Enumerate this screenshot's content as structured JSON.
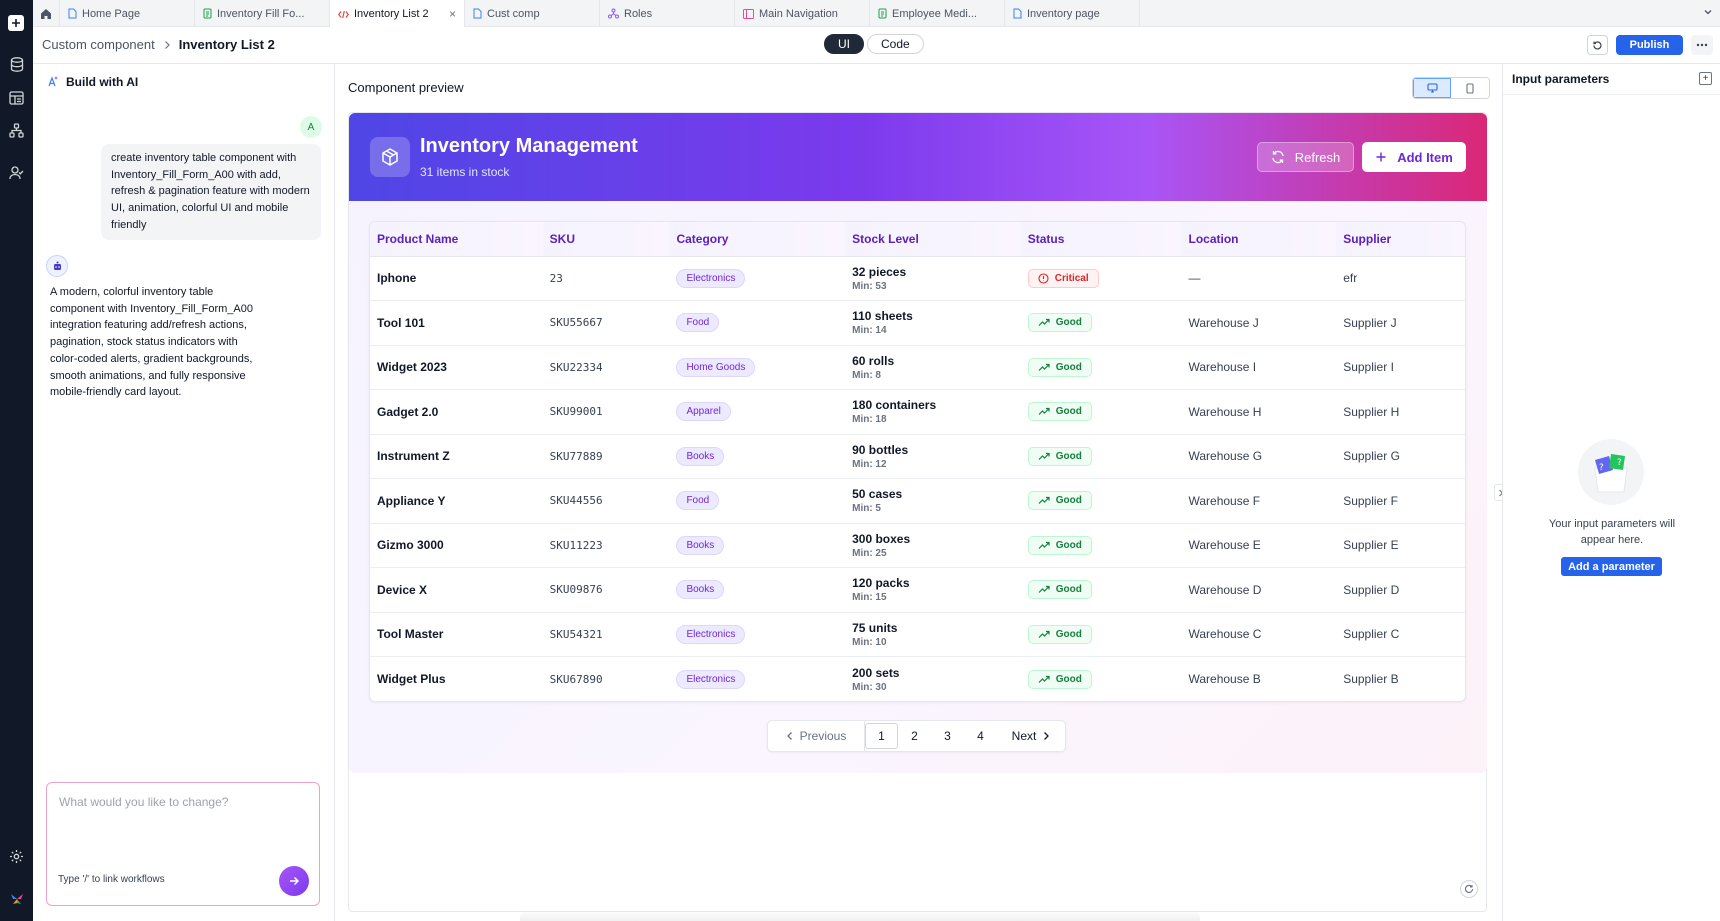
{
  "rail": {
    "icons": [
      "plus-icon",
      "database-icon",
      "table-icon",
      "workflow-icon",
      "users-icon",
      "settings-icon",
      "logo-icon"
    ]
  },
  "tabs": [
    {
      "label": "Home Page",
      "icon": "page-icon",
      "active": false
    },
    {
      "label": "Inventory Fill Fo...",
      "icon": "form-icon",
      "active": false
    },
    {
      "label": "Inventory List 2",
      "icon": "code-icon",
      "active": true
    },
    {
      "label": "Cust comp",
      "icon": "page-icon",
      "active": false
    },
    {
      "label": "Roles",
      "icon": "roles-icon",
      "active": false
    },
    {
      "label": "Main Navigation",
      "icon": "nav-icon",
      "active": false
    },
    {
      "label": "Employee Medi...",
      "icon": "form-icon",
      "active": false
    },
    {
      "label": "Inventory page",
      "icon": "page-icon",
      "active": false
    }
  ],
  "header": {
    "breadcrumb_parent": "Custom component",
    "breadcrumb_current": "Inventory List 2",
    "mode_ui": "UI",
    "mode_code": "Code",
    "publish_label": "Publish"
  },
  "ai_panel": {
    "title": "Build with AI",
    "user_avatar": "A",
    "user_message": "create inventory table component with Inventory_Fill_Form_A00 with add, refresh & pagination feature with modern UI, animation, colorful UI and mobile friendly",
    "bot_message": "A modern, colorful inventory table component with Inventory_Fill_Form_A00 integration featuring add/refresh actions, pagination, stock status indicators with color-coded alerts, gradient backgrounds, smooth animations, and fully responsive mobile-friendly card layout.",
    "input_placeholder": "What would you like to change?",
    "input_hint": "Type '/' to link workflows"
  },
  "preview": {
    "title": "Component preview",
    "hero_title": "Inventory Management",
    "hero_subtitle": "31 items in stock",
    "refresh_label": "Refresh",
    "add_label": "Add Item",
    "columns": [
      "Product Name",
      "SKU",
      "Category",
      "Stock Level",
      "Status",
      "Location",
      "Supplier"
    ],
    "rows": [
      {
        "name": "Iphone",
        "sku": "23",
        "category": "Electronics",
        "stock": "32 pieces",
        "min": "Min: 53",
        "status": "Critical",
        "location": "—",
        "supplier": "efr"
      },
      {
        "name": "Tool 101",
        "sku": "SKU55667",
        "category": "Food",
        "stock": "110 sheets",
        "min": "Min: 14",
        "status": "Good",
        "location": "Warehouse J",
        "supplier": "Supplier J"
      },
      {
        "name": "Widget 2023",
        "sku": "SKU22334",
        "category": "Home Goods",
        "stock": "60 rolls",
        "min": "Min: 8",
        "status": "Good",
        "location": "Warehouse I",
        "supplier": "Supplier I"
      },
      {
        "name": "Gadget 2.0",
        "sku": "SKU99001",
        "category": "Apparel",
        "stock": "180 containers",
        "min": "Min: 18",
        "status": "Good",
        "location": "Warehouse H",
        "supplier": "Supplier H"
      },
      {
        "name": "Instrument Z",
        "sku": "SKU77889",
        "category": "Books",
        "stock": "90 bottles",
        "min": "Min: 12",
        "status": "Good",
        "location": "Warehouse G",
        "supplier": "Supplier G"
      },
      {
        "name": "Appliance Y",
        "sku": "SKU44556",
        "category": "Food",
        "stock": "50 cases",
        "min": "Min: 5",
        "status": "Good",
        "location": "Warehouse F",
        "supplier": "Supplier F"
      },
      {
        "name": "Gizmo 3000",
        "sku": "SKU11223",
        "category": "Books",
        "stock": "300 boxes",
        "min": "Min: 25",
        "status": "Good",
        "location": "Warehouse E",
        "supplier": "Supplier E"
      },
      {
        "name": "Device X",
        "sku": "SKU09876",
        "category": "Books",
        "stock": "120 packs",
        "min": "Min: 15",
        "status": "Good",
        "location": "Warehouse D",
        "supplier": "Supplier D"
      },
      {
        "name": "Tool Master",
        "sku": "SKU54321",
        "category": "Electronics",
        "stock": "75 units",
        "min": "Min: 10",
        "status": "Good",
        "location": "Warehouse C",
        "supplier": "Supplier C"
      },
      {
        "name": "Widget Plus",
        "sku": "SKU67890",
        "category": "Electronics",
        "stock": "200 sets",
        "min": "Min: 30",
        "status": "Good",
        "location": "Warehouse B",
        "supplier": "Supplier B"
      }
    ],
    "pagination": {
      "prev_label": "Previous",
      "pages": [
        "1",
        "2",
        "3",
        "4"
      ],
      "current": "1",
      "next_label": "Next"
    }
  },
  "right_panel": {
    "title": "Input parameters",
    "empty_text": "Your input parameters will appear here.",
    "add_button": "Add a parameter"
  },
  "colors": {
    "accent": "#2563eb",
    "hero_gradient_start": "#4f46e5",
    "hero_gradient_end": "#db2777",
    "good": "#15803d",
    "critical": "#dc2626"
  }
}
